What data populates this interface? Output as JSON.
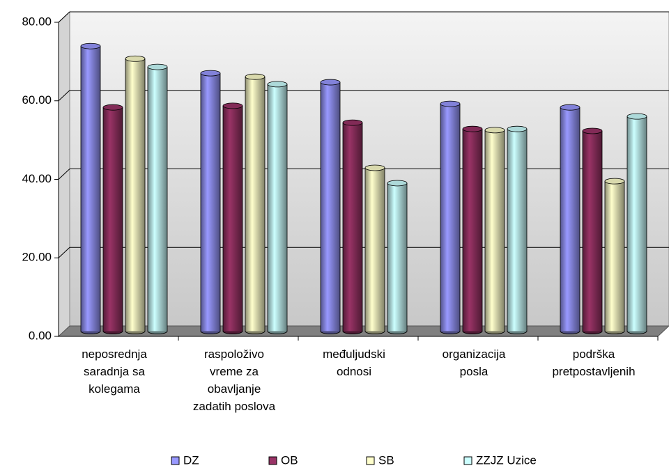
{
  "chart_data": {
    "type": "bar3d",
    "categories": [
      "neposrednja\nsaradnja sa\nkolegama",
      "raspoloživo\nvreme za\nobavljanje\nzadatih poslova",
      "međuljudski\nodnosi",
      "organizacija\nposla",
      "podrška\npretpostavljenih"
    ],
    "series": [
      {
        "name": "DZ",
        "color": "#9999ff",
        "values": [
          72.6,
          65.7,
          63.4,
          57.9,
          57.0
        ]
      },
      {
        "name": "OB",
        "color": "#993366",
        "values": [
          57.0,
          57.4,
          53.1,
          51.5,
          51.0
        ]
      },
      {
        "name": "SB",
        "color": "#ffffcc",
        "values": [
          69.4,
          64.8,
          41.6,
          51.2,
          38.2
        ]
      },
      {
        "name": "ZZJZ Uzice",
        "color": "#ccffff",
        "values": [
          67.3,
          62.9,
          37.7,
          51.5,
          54.7
        ]
      }
    ],
    "ylim": [
      0,
      80
    ],
    "yticks": [
      {
        "value": 0,
        "label": "0.00"
      },
      {
        "value": 20,
        "label": "20.00"
      },
      {
        "value": 40,
        "label": "40.00"
      },
      {
        "value": 60,
        "label": "60.00"
      },
      {
        "value": 80,
        "label": "80.00"
      }
    ],
    "grid": true,
    "legend": "bottom"
  }
}
